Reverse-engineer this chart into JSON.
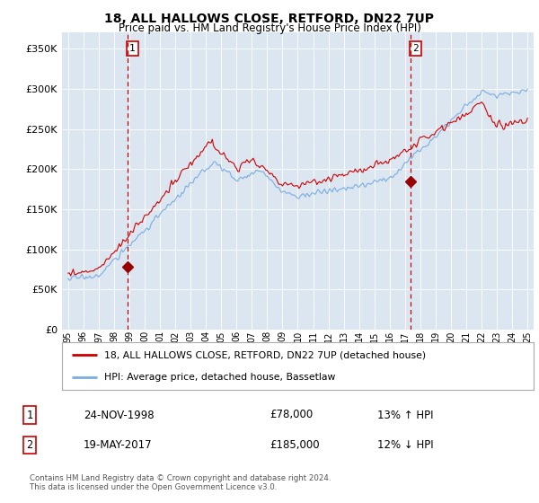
{
  "title": "18, ALL HALLOWS CLOSE, RETFORD, DN22 7UP",
  "subtitle": "Price paid vs. HM Land Registry's House Price Index (HPI)",
  "legend_line1": "18, ALL HALLOWS CLOSE, RETFORD, DN22 7UP (detached house)",
  "legend_line2": "HPI: Average price, detached house, Bassetlaw",
  "footnote": "Contains HM Land Registry data © Crown copyright and database right 2024.\nThis data is licensed under the Open Government Licence v3.0.",
  "annotation1_label": "1",
  "annotation1_date": "24-NOV-1998",
  "annotation1_price": "£78,000",
  "annotation1_hpi": "13% ↑ HPI",
  "annotation2_label": "2",
  "annotation2_date": "19-MAY-2017",
  "annotation2_price": "£185,000",
  "annotation2_hpi": "12% ↓ HPI",
  "price_color": "#cc0000",
  "hpi_color": "#7aade0",
  "vline_color": "#cc0000",
  "background_color": "#dce6f1",
  "ylim": [
    0,
    370000
  ],
  "yticks": [
    0,
    50000,
    100000,
    150000,
    200000,
    250000,
    300000,
    350000
  ],
  "marker1_x": 1998.9,
  "marker1_y": 78000,
  "marker2_x": 2017.38,
  "marker2_y": 185000,
  "vline1_x": 1998.9,
  "vline2_x": 2017.38,
  "xmin": 1994.6,
  "xmax": 2025.4
}
